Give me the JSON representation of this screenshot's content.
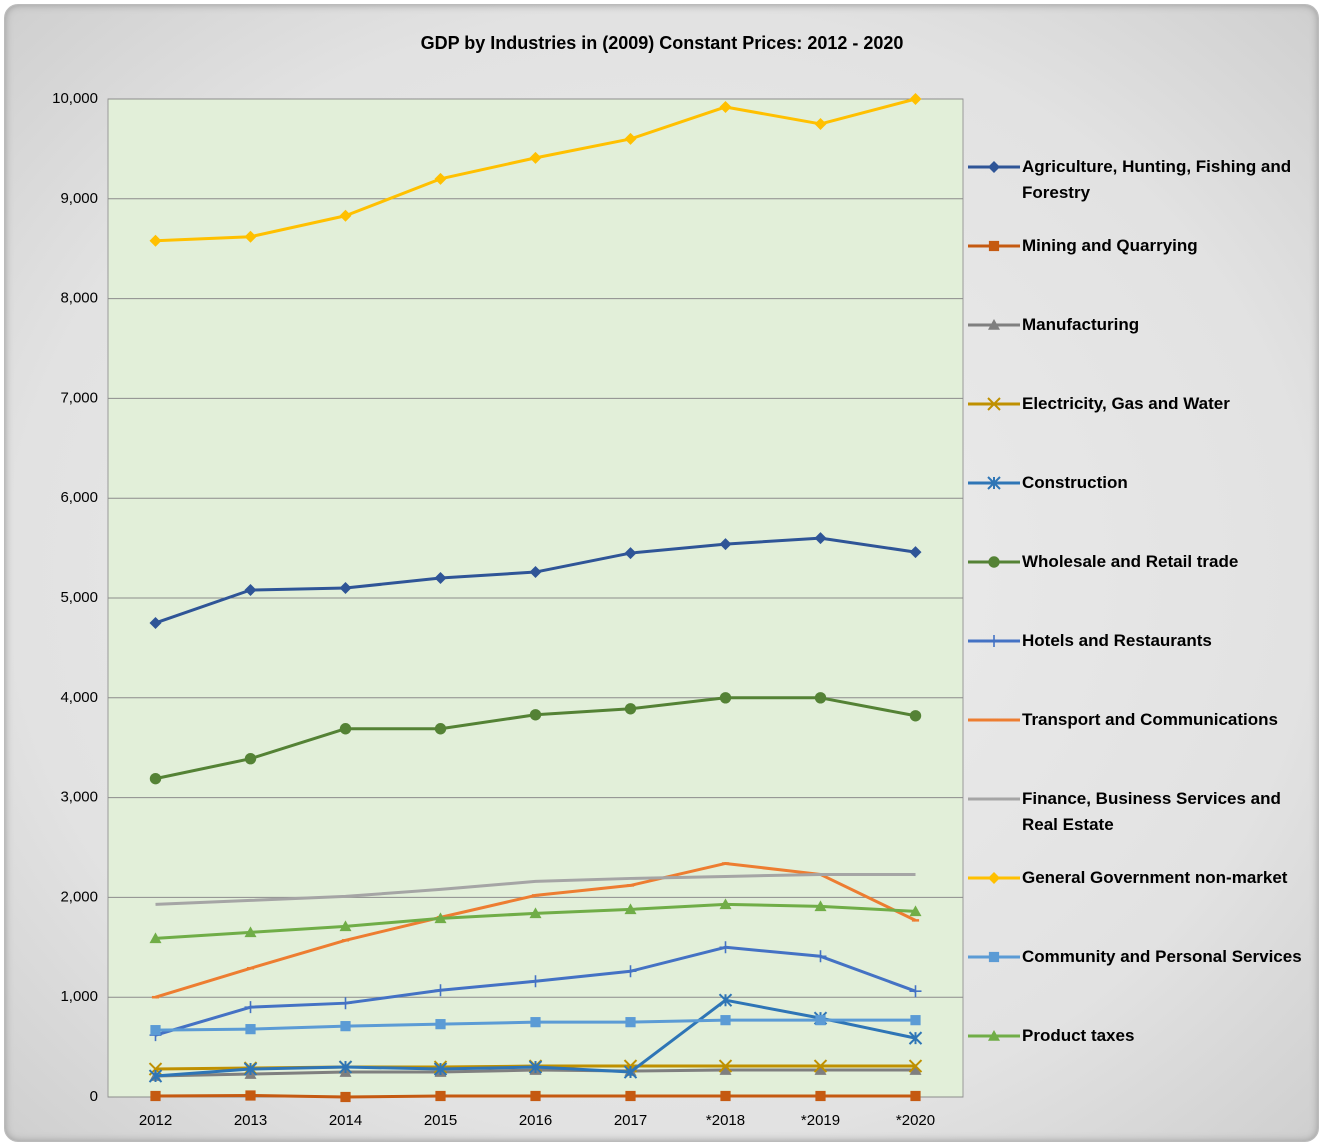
{
  "chart_data": {
    "type": "line",
    "title": "GDP by Industries in (2009) Constant Prices: 2012 - 2020",
    "categories": [
      "2012",
      "2013",
      "2014",
      "2015",
      "2016",
      "2017",
      "*2018",
      "*2019",
      "*2020"
    ],
    "ylim": [
      0,
      10000
    ],
    "yticks": [
      0,
      {
        "value": 1000,
        "label": "1,000"
      },
      {
        "value": 2000,
        "label": "2,000"
      },
      {
        "value": 3000,
        "label": "3,000"
      },
      {
        "value": 4000,
        "label": "4,000"
      },
      {
        "value": 5000,
        "label": "5,000"
      },
      {
        "value": 6000,
        "label": "6,000"
      },
      {
        "value": 7000,
        "label": "7,000"
      },
      {
        "value": 8000,
        "label": "8,000"
      },
      {
        "value": 9000,
        "label": "9,000"
      },
      {
        "value": 10000,
        "label": "10,000"
      }
    ],
    "grid": true,
    "legend": "right",
    "series": [
      {
        "name": "Agriculture, Hunting, Fishing and Forestry",
        "color": "#2f5597",
        "marker": "diamond",
        "values": [
          4750,
          5080,
          5100,
          5200,
          5260,
          5450,
          5540,
          5600,
          5460
        ]
      },
      {
        "name": "Mining and Quarrying",
        "color": "#c55a11",
        "marker": "square",
        "values": [
          10,
          15,
          0,
          10,
          10,
          10,
          10,
          10,
          10
        ]
      },
      {
        "name": "Manufacturing",
        "color": "#7f7f7f",
        "marker": "triangle",
        "values": [
          210,
          230,
          250,
          250,
          270,
          260,
          270,
          270,
          270
        ]
      },
      {
        "name": "Electricity, Gas and Water",
        "color": "#bf9000",
        "marker": "x",
        "values": [
          280,
          290,
          300,
          300,
          310,
          310,
          310,
          310,
          310
        ]
      },
      {
        "name": "Construction",
        "color": "#2e75b6",
        "marker": "asterisk",
        "values": [
          210,
          280,
          300,
          280,
          300,
          250,
          970,
          790,
          590
        ]
      },
      {
        "name": "Wholesale and Retail trade",
        "color": "#548235",
        "marker": "circle",
        "values": [
          3190,
          3390,
          3690,
          3690,
          3830,
          3890,
          4000,
          4000,
          3820
        ]
      },
      {
        "name": "Hotels and Restaurants",
        "color": "#4472c4",
        "marker": "plus",
        "values": [
          620,
          900,
          940,
          1070,
          1160,
          1260,
          1500,
          1410,
          1060
        ]
      },
      {
        "name": "Transport and Communications",
        "color": "#ed7d31",
        "marker": "dash",
        "values": [
          1000,
          1290,
          1570,
          1800,
          2020,
          2120,
          2340,
          2230,
          1770
        ]
      },
      {
        "name": "Finance, Business Services and Real Estate",
        "color": "#a5a5a5",
        "marker": "none",
        "values": [
          1930,
          1970,
          2010,
          2080,
          2160,
          2190,
          2210,
          2230,
          2230
        ]
      },
      {
        "name": "General Government non-market",
        "color": "#ffc000",
        "marker": "diamond",
        "values": [
          8580,
          8620,
          8830,
          9200,
          9410,
          9600,
          9920,
          9750,
          10000
        ]
      },
      {
        "name": "Community and Personal Services",
        "color": "#5b9bd5",
        "marker": "square",
        "values": [
          670,
          680,
          710,
          730,
          750,
          750,
          770,
          770,
          770
        ]
      },
      {
        "name": "Product taxes",
        "color": "#70ad47",
        "marker": "triangle",
        "values": [
          1590,
          1650,
          1710,
          1790,
          1840,
          1880,
          1930,
          1910,
          1860
        ]
      }
    ]
  }
}
